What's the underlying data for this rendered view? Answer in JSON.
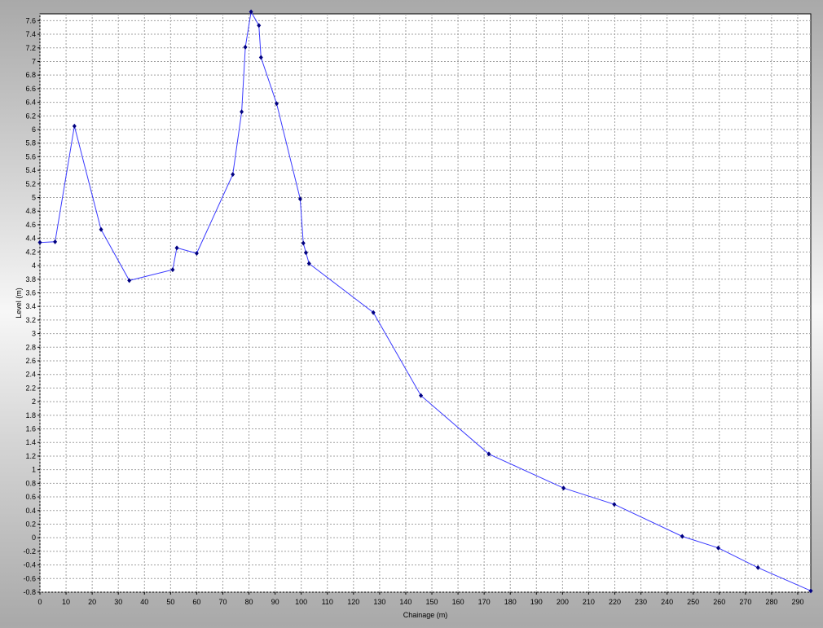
{
  "chart_data": {
    "type": "line",
    "title": "",
    "xlabel": "Chainage (m)",
    "ylabel": "Level (m)",
    "xlim": [
      0,
      295
    ],
    "ylim": [
      -0.8,
      7.7
    ],
    "x_ticks": [
      0,
      10,
      20,
      30,
      40,
      50,
      60,
      70,
      80,
      90,
      100,
      110,
      120,
      130,
      140,
      150,
      160,
      170,
      180,
      190,
      200,
      210,
      220,
      230,
      240,
      250,
      260,
      270,
      280,
      290
    ],
    "y_ticks": [
      -0.8,
      -0.6,
      -0.4,
      -0.2,
      0,
      0.2,
      0.4,
      0.6,
      0.8,
      1,
      1.2,
      1.4,
      1.6,
      1.8,
      2,
      2.2,
      2.4,
      2.6,
      2.8,
      3,
      3.2,
      3.4,
      3.6,
      3.8,
      4,
      4.2,
      4.4,
      4.6,
      4.8,
      5,
      5.2,
      5.4,
      5.6,
      5.8,
      6,
      6.2,
      6.4,
      6.6,
      6.8,
      7,
      7.2,
      7.4,
      7.6
    ],
    "grid": true,
    "line_color": "#3a3aff",
    "marker_color": "#000080",
    "series": [
      {
        "x": [
          0,
          5.8,
          13.2,
          23.4,
          34.2,
          50.8,
          52.4,
          60.0,
          73.8,
          77.2,
          78.6,
          80.8,
          83.8,
          84.6,
          90.6,
          99.6,
          100.8,
          101.8,
          103.0,
          127.6,
          145.8,
          171.8,
          200.4,
          219.8,
          245.8,
          259.6,
          274.8,
          295.0
        ],
        "y": [
          4.34,
          4.35,
          6.05,
          4.53,
          3.78,
          3.94,
          4.26,
          4.18,
          5.34,
          6.26,
          7.21,
          7.73,
          7.53,
          7.06,
          6.38,
          4.98,
          4.33,
          4.19,
          4.03,
          3.31,
          2.09,
          1.23,
          0.73,
          0.49,
          0.02,
          -0.15,
          -0.44,
          -0.78
        ]
      }
    ]
  }
}
